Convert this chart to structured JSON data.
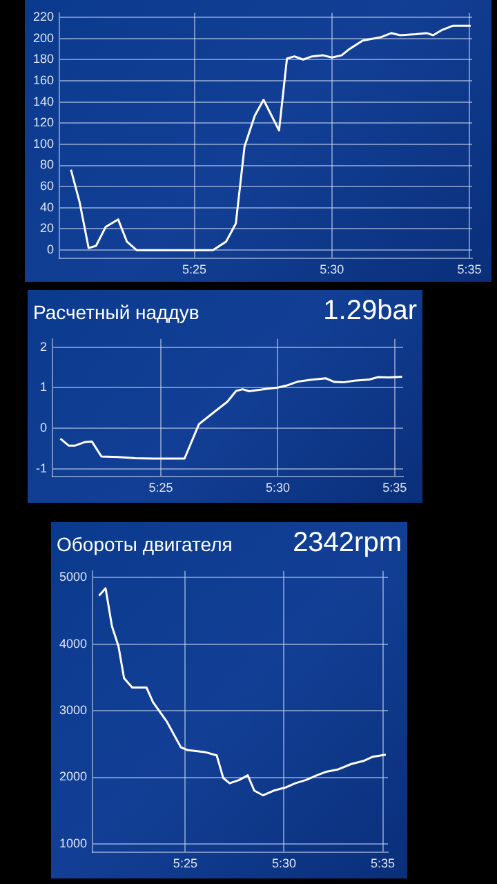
{
  "chart_data": [
    {
      "type": "line",
      "x": [
        5.3419,
        5.3472,
        5.3526,
        5.3571,
        5.363,
        5.3705,
        5.3758,
        5.3817,
        5.4279,
        5.4359,
        5.4418,
        5.4471,
        5.4533,
        5.4586,
        5.468,
        5.4728,
        5.4773,
        5.4826,
        5.488,
        5.4947,
        5.5,
        5.5059,
        5.5107,
        5.5187,
        5.5294,
        5.5361,
        5.5414,
        5.5508,
        5.5574,
        5.5614,
        5.5668,
        5.5735,
        5.5841
      ],
      "series": [
        {
          "color": "#ffffff",
          "values": [
            76,
            45,
            2,
            4,
            22,
            29,
            8,
            0,
            0,
            8,
            25,
            98,
            127,
            142,
            113,
            181,
            183,
            180,
            183,
            184,
            182,
            184,
            190,
            198,
            201,
            205,
            203,
            204,
            205,
            203,
            208,
            212,
            212
          ]
        }
      ],
      "xlim": [
        5.3349,
        5.585
      ],
      "xticks": [
        {
          "value": 5.416667,
          "label": "5:25"
        },
        {
          "value": 5.5,
          "label": "5:30"
        },
        {
          "value": 5.583333,
          "label": "5:35"
        }
      ],
      "ylim": [
        -8,
        224
      ],
      "yticks": [
        0,
        20,
        40,
        60,
        80,
        100,
        120,
        140,
        160,
        180,
        200,
        220
      ],
      "grid": true,
      "marker": "none"
    },
    {
      "type": "line",
      "title": "Расчетный наддув",
      "subtitle": "1.29bar",
      "x": [
        5.345,
        5.3509,
        5.3556,
        5.3628,
        5.3675,
        5.3743,
        5.3861,
        5.3986,
        5.4111,
        5.4335,
        5.4438,
        5.4547,
        5.464,
        5.4703,
        5.4749,
        5.4796,
        5.4921,
        5.4998,
        5.5061,
        5.5145,
        5.5232,
        5.5341,
        5.5404,
        5.5466,
        5.5544,
        5.5653,
        5.5715,
        5.5793,
        5.5886
      ],
      "series": [
        {
          "color": "#ffffff",
          "values": [
            -0.26,
            -0.43,
            -0.43,
            -0.34,
            -0.33,
            -0.7,
            -0.71,
            -0.74,
            -0.75,
            -0.75,
            0.1,
            0.4,
            0.65,
            0.92,
            0.96,
            0.91,
            0.97,
            1.0,
            1.05,
            1.15,
            1.19,
            1.23,
            1.14,
            1.13,
            1.17,
            1.2,
            1.26,
            1.25,
            1.27
          ]
        }
      ],
      "xlim": [
        5.3394,
        5.5893
      ],
      "xticks": [
        {
          "value": 5.416667,
          "label": "5:25"
        },
        {
          "value": 5.5,
          "label": "5:30"
        },
        {
          "value": 5.583333,
          "label": "5:35"
        }
      ],
      "ylim": [
        -1.2,
        2.2
      ],
      "yticks": [
        -1,
        0,
        1,
        2
      ],
      "grid": true,
      "marker": "none"
    },
    {
      "type": "line",
      "title": "Обороты двигателя",
      "subtitle": "2342rpm",
      "x": [
        5.3439,
        5.3494,
        5.3548,
        5.3603,
        5.365,
        5.3719,
        5.3839,
        5.3894,
        5.401,
        5.413,
        5.4185,
        5.433,
        5.4432,
        5.4487,
        5.4541,
        5.4622,
        5.4694,
        5.4749,
        5.4822,
        5.4913,
        5.5018,
        5.5095,
        5.5186,
        5.5277,
        5.5349,
        5.5459,
        5.5568,
        5.5677,
        5.575,
        5.5859
      ],
      "series": [
        {
          "color": "#ffffff",
          "values": [
            4730,
            4840,
            4270,
            3970,
            3490,
            3350,
            3350,
            3130,
            2840,
            2450,
            2410,
            2380,
            2330,
            1990,
            1910,
            1960,
            2030,
            1800,
            1730,
            1800,
            1850,
            1910,
            1960,
            2030,
            2080,
            2120,
            2200,
            2250,
            2310,
            2340
          ]
        }
      ],
      "xlim": [
        5.3384,
        5.5877
      ],
      "xticks": [
        {
          "value": 5.416667,
          "label": "5:25"
        },
        {
          "value": 5.5,
          "label": "5:30"
        },
        {
          "value": 5.583333,
          "label": "5:35"
        }
      ],
      "ylim": [
        870,
        5100
      ],
      "yticks": [
        1000,
        2000,
        3000,
        4000,
        5000
      ],
      "grid": true,
      "marker": "none"
    }
  ]
}
